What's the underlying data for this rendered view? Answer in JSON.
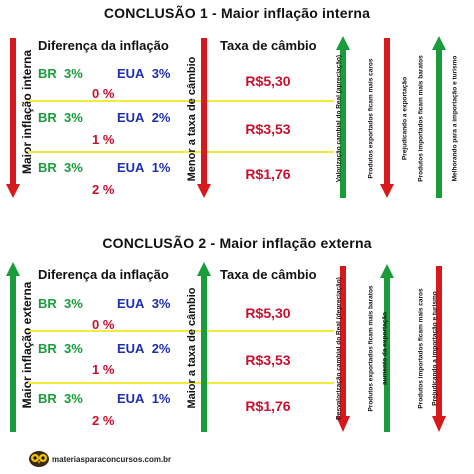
{
  "panels": [
    {
      "title": "CONCLUSÃO 1 - Maior inflação interna",
      "left_vertical_label": "Maior inflação interna",
      "diff_header": "Diferença da inflação",
      "middle_vertical_label": "Menor a taxa de câmbio",
      "rate_header": "Taxa de câmbio",
      "rows": [
        {
          "br": "BR",
          "br_val": "3%",
          "us": "EUA",
          "us_val": "3%",
          "diff": "0 %",
          "rate": "R$5,30"
        },
        {
          "br": "BR",
          "br_val": "3%",
          "us": "EUA",
          "us_val": "2%",
          "diff": "1 %",
          "rate": "R$3,53"
        },
        {
          "br": "BR",
          "br_val": "3%",
          "us": "EUA",
          "us_val": "1%",
          "diff": "2 %",
          "rate": "R$1,76"
        }
      ],
      "side_labels": [
        "Valorização cambial do Real (apreciação)",
        "Produtos exportados ficam mais caros",
        "Prejudicando a exportação",
        "Produtos importados ficam mais baratos",
        "Melhorando para a importação e turismo"
      ]
    },
    {
      "title": "CONCLUSÃO 2 - Maior inflação externa",
      "left_vertical_label": "Maior inflação externa",
      "diff_header": "Diferença da inflação",
      "middle_vertical_label": "Maior a taxa de câmbio",
      "rate_header": "Taxa de câmbio",
      "rows": [
        {
          "br": "BR",
          "br_val": "3%",
          "us": "EUA",
          "us_val": "3%",
          "diff": "0 %",
          "rate": "R$5,30"
        },
        {
          "br": "BR",
          "br_val": "3%",
          "us": "EUA",
          "us_val": "2%",
          "diff": "1 %",
          "rate": "R$3,53"
        },
        {
          "br": "BR",
          "br_val": "3%",
          "us": "EUA",
          "us_val": "1%",
          "diff": "2 %",
          "rate": "R$1,76"
        }
      ],
      "side_labels": [
        "Desvalorização cambial do Real (depreciação)",
        "Produtos exportados ficam mais baratos",
        "aumento da exportação",
        "Produtos importados ficam mais caros",
        "Prejudicando a importação e turismo"
      ]
    }
  ],
  "footer": "materiasparaconcursos.com.br",
  "colors": {
    "green": "#1a9c3a",
    "red": "#d7191c",
    "blue": "#1f2fb0",
    "yellow": "#f4ea3a"
  },
  "icons": {
    "logo": "owl-icon"
  }
}
